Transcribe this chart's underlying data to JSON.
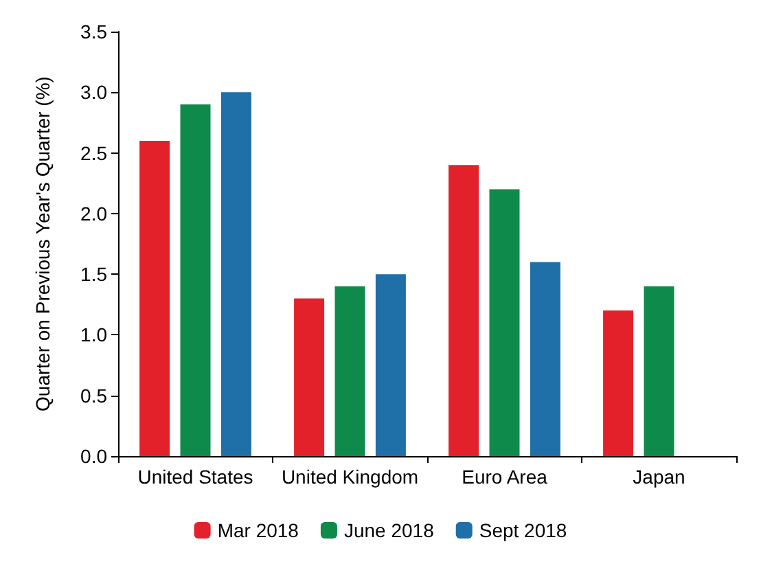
{
  "chart_data": {
    "type": "bar",
    "ylabel": "Quarter on Previous Year's Quarter (%)",
    "categories": [
      "United States",
      "United Kingdom",
      "Euro Area",
      "Japan"
    ],
    "series": [
      {
        "name": "Mar 2018",
        "color": "#e3212b",
        "values": [
          2.6,
          1.3,
          2.4,
          1.2
        ]
      },
      {
        "name": "June 2018",
        "color": "#0e8a4a",
        "values": [
          2.9,
          1.4,
          2.2,
          1.4
        ]
      },
      {
        "name": "Sept 2018",
        "color": "#1f6fa8",
        "values": [
          3.0,
          1.5,
          1.6,
          null
        ]
      }
    ],
    "ylim": [
      0,
      3.5
    ],
    "yticks": [
      {
        "value": 0,
        "label": "0.0"
      },
      {
        "value": 0.5,
        "label": "0.5"
      },
      {
        "value": 1,
        "label": "1.0"
      },
      {
        "value": 1.5,
        "label": "1.5"
      },
      {
        "value": 2,
        "label": "2.0"
      },
      {
        "value": 2.5,
        "label": "2.5"
      },
      {
        "value": 3,
        "label": "3.0"
      },
      {
        "value": 3.5,
        "label": "3.5"
      }
    ],
    "grid": false,
    "legend": "bottom"
  }
}
